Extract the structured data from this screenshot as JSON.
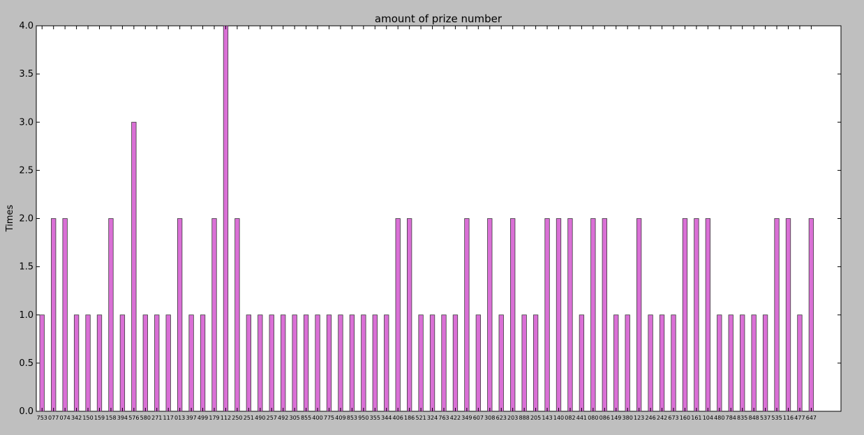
{
  "chart_data": {
    "type": "bar",
    "title": "amount of prize number",
    "xlabel": "",
    "ylabel": "Times",
    "ylim": [
      0,
      4.0
    ],
    "yticks": [
      "0.0",
      "0.5",
      "1.0",
      "1.5",
      "2.0",
      "2.5",
      "3.0",
      "3.5",
      "4.0"
    ],
    "grid": false,
    "bar_color": "#da70d6",
    "bar_edge_color": "#3a3a3a",
    "categories": [
      "753",
      "077",
      "074",
      "342",
      "150",
      "159",
      "158",
      "394",
      "576",
      "580",
      "271",
      "117",
      "013",
      "397",
      "499",
      "179",
      "112",
      "250",
      "251",
      "490",
      "257",
      "492",
      "305",
      "855",
      "400",
      "775",
      "409",
      "853",
      "950",
      "355",
      "344",
      "406",
      "186",
      "521",
      "324",
      "763",
      "422",
      "349",
      "607",
      "308",
      "623",
      "203",
      "888",
      "205",
      "143",
      "140",
      "082",
      "441",
      "080",
      "086",
      "149",
      "380",
      "123",
      "246",
      "242",
      "673",
      "160",
      "161",
      "104",
      "480",
      "784",
      "835",
      "848",
      "537",
      "535",
      "116",
      "477",
      "647"
    ],
    "values": [
      1,
      2,
      2,
      1,
      1,
      1,
      2,
      1,
      3,
      1,
      1,
      1,
      2,
      1,
      1,
      2,
      4,
      2,
      1,
      1,
      1,
      1,
      1,
      1,
      1,
      1,
      1,
      1,
      1,
      1,
      1,
      2,
      2,
      1,
      1,
      1,
      1,
      2,
      1,
      2,
      1,
      2,
      1,
      1,
      2,
      2,
      2,
      1,
      2,
      2,
      1,
      1,
      2,
      1,
      1,
      1,
      2,
      2,
      2,
      1,
      1,
      1,
      1,
      1,
      2,
      2,
      1,
      2
    ]
  }
}
